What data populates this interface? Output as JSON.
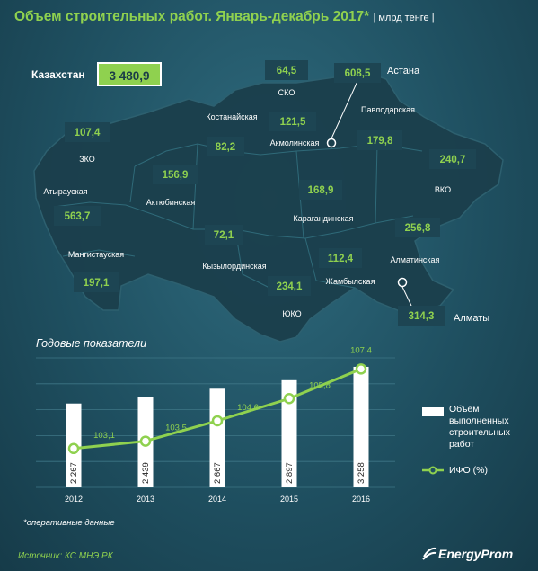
{
  "title": "Объем строительных работ. Январь-декабрь 2017*",
  "unit": "| млрд тенге |",
  "kazakhstan": {
    "label": "Казахстан",
    "total": "3 480,9"
  },
  "regions": [
    {
      "name": "СКО",
      "value": "64,5"
    },
    {
      "name": "Астана",
      "value": "608,5"
    },
    {
      "name": "Костанайская",
      "value": "82,2"
    },
    {
      "name": "Акмолинская",
      "value": "121,5"
    },
    {
      "name": "Павлодарская",
      "value": "179,8"
    },
    {
      "name": "ЗКО",
      "value": "107,4"
    },
    {
      "name": "Актюбинская",
      "value": "156,9"
    },
    {
      "name": "Карагандинская",
      "value": "168,9"
    },
    {
      "name": "ВКО",
      "value": "240,7"
    },
    {
      "name": "Атырауская",
      "value": "563,7"
    },
    {
      "name": "Мангистауская",
      "value": "197,1"
    },
    {
      "name": "Кызылординская",
      "value": "72,1"
    },
    {
      "name": "Жамбылская",
      "value": "112,4"
    },
    {
      "name": "Алматинская",
      "value": "256,8"
    },
    {
      "name": "ЮКО",
      "value": "234,1"
    },
    {
      "name": "Алматы",
      "value": "314,3"
    }
  ],
  "chart_data": {
    "type": "bar",
    "title": "Годовые показатели",
    "categories": [
      "2012",
      "2013",
      "2014",
      "2015",
      "2016"
    ],
    "series": [
      {
        "name": "Объем выполненных строительных работ",
        "type": "bar",
        "values": [
          2267,
          2439,
          2667,
          2897,
          3258
        ],
        "labels": [
          "2 267",
          "2 439",
          "2 667",
          "2 897",
          "3 258"
        ]
      },
      {
        "name": "ИФО (%)",
        "type": "line",
        "values": [
          103.1,
          103.5,
          104.6,
          105.8,
          107.4
        ],
        "labels": [
          "103,1",
          "103,5",
          "104,6",
          "105,8",
          "107,4"
        ]
      }
    ],
    "grid": true,
    "legend": "right",
    "colors": {
      "bar": "#ffffff",
      "line": "#8fd14f"
    }
  },
  "footnote": "*оперативные данные",
  "source": "Источник: КС МНЭ РК",
  "brand": "EnergyProm"
}
